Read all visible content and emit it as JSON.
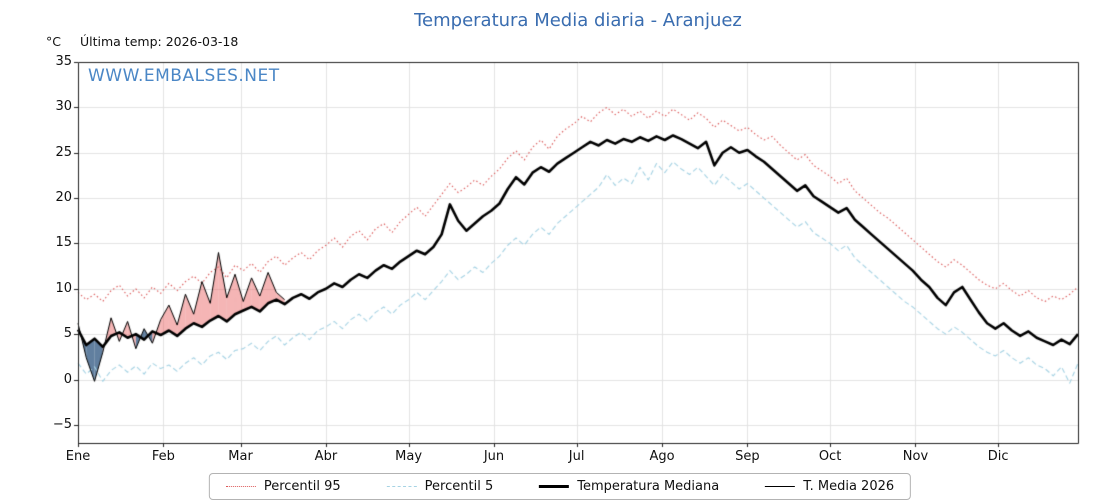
{
  "header": {
    "title": "Temperatura Media diaria - Aranjuez",
    "unit": "°C",
    "last_temp": "Última temp: 2026-03-18",
    "watermark": "WWW.EMBALSES.NET"
  },
  "colors": {
    "title_blue": "#3a6db0",
    "watermark_blue": "#4b87c6",
    "percentil95_red": "#dc5a5a",
    "percentil5_blue": "#a6d3e4",
    "median_black": "#000000",
    "grid_gray": "#e3e3e3",
    "fill_above": "rgba(232,90,90,0.45)",
    "fill_below": "rgba(58,95,135,0.8)"
  },
  "chart_data": {
    "type": "line",
    "title": "Temperatura Media diaria - Aranjuez",
    "ylabel": "°C",
    "ylim": [
      -7,
      35
    ],
    "yticks": [
      35,
      30,
      25,
      20,
      15,
      10,
      5,
      0,
      -5
    ],
    "x_months": [
      "Ene",
      "Feb",
      "Mar",
      "Abr",
      "May",
      "Jun",
      "Jul",
      "Ago",
      "Sep",
      "Oct",
      "Nov",
      "Dic"
    ],
    "month_starts": [
      0,
      31,
      59,
      90,
      120,
      151,
      181,
      212,
      243,
      273,
      304,
      334
    ],
    "x_step_days": 3,
    "grid": true,
    "legend_position": "bottom",
    "fill_above_color": "rgba(232,90,90,0.45)",
    "fill_below_color": "rgba(58,95,135,0.8)",
    "series": [
      {
        "name": "Percentil 95",
        "color": "#dc5a5a",
        "dash": "dotted",
        "line_width": 1.1,
        "values": [
          9.6,
          8.8,
          9.4,
          8.6,
          9.8,
          10.4,
          9.2,
          10.0,
          9.0,
          10.2,
          9.5,
          10.6,
          9.8,
          10.8,
          11.4,
          10.6,
          11.8,
          12.4,
          11.2,
          12.6,
          12.0,
          12.8,
          11.8,
          13.0,
          13.6,
          12.6,
          13.4,
          14.0,
          13.2,
          14.2,
          14.8,
          15.6,
          14.6,
          15.8,
          16.4,
          15.4,
          16.6,
          17.2,
          16.2,
          17.4,
          18.2,
          19.0,
          18.0,
          19.2,
          20.4,
          21.6,
          20.6,
          21.2,
          22.0,
          21.4,
          22.4,
          23.2,
          24.4,
          25.2,
          24.2,
          25.6,
          26.4,
          25.4,
          26.8,
          27.6,
          28.2,
          29.0,
          28.4,
          29.4,
          30.0,
          29.2,
          29.8,
          29.0,
          29.6,
          28.8,
          29.6,
          29.0,
          29.8,
          29.2,
          28.6,
          29.4,
          28.8,
          27.8,
          28.6,
          28.0,
          27.4,
          27.8,
          27.0,
          26.4,
          26.8,
          25.8,
          25.0,
          24.2,
          24.8,
          23.6,
          23.0,
          22.4,
          21.6,
          22.2,
          20.8,
          20.0,
          19.2,
          18.4,
          17.8,
          17.0,
          16.2,
          15.4,
          14.6,
          13.8,
          13.0,
          12.4,
          13.2,
          12.6,
          11.8,
          11.0,
          10.4,
          10.0,
          10.6,
          9.8,
          9.2,
          9.8,
          9.0,
          8.6,
          9.2,
          8.8,
          9.4,
          10.2
        ]
      },
      {
        "name": "Percentil 5",
        "color": "#a6d3e4",
        "dash": "dashed",
        "line_width": 1.1,
        "values": [
          1.8,
          0.6,
          1.4,
          -0.2,
          1.0,
          1.6,
          0.8,
          1.5,
          0.6,
          1.8,
          1.2,
          1.6,
          0.9,
          1.8,
          2.4,
          1.6,
          2.6,
          3.0,
          2.2,
          3.2,
          3.4,
          4.0,
          3.2,
          4.2,
          4.8,
          3.8,
          4.6,
          5.2,
          4.4,
          5.4,
          5.8,
          6.4,
          5.6,
          6.6,
          7.2,
          6.4,
          7.4,
          8.0,
          7.2,
          8.2,
          8.8,
          9.6,
          8.8,
          9.8,
          10.8,
          12.0,
          11.0,
          11.6,
          12.4,
          11.8,
          12.8,
          13.6,
          14.8,
          15.6,
          14.8,
          16.0,
          16.8,
          16.0,
          17.2,
          18.0,
          18.8,
          19.6,
          20.4,
          21.2,
          22.6,
          21.4,
          22.2,
          21.6,
          23.4,
          22.0,
          23.8,
          22.8,
          24.0,
          23.2,
          22.6,
          23.4,
          22.4,
          21.4,
          22.6,
          21.8,
          21.0,
          21.6,
          20.8,
          20.0,
          19.2,
          18.4,
          17.6,
          16.8,
          17.4,
          16.2,
          15.6,
          15.0,
          14.2,
          14.8,
          13.4,
          12.6,
          11.8,
          11.0,
          10.2,
          9.4,
          8.6,
          8.0,
          7.2,
          6.4,
          5.6,
          5.0,
          5.8,
          5.2,
          4.4,
          3.6,
          3.0,
          2.6,
          3.2,
          2.4,
          1.8,
          2.4,
          1.6,
          1.2,
          0.4,
          1.4,
          -0.4,
          1.8
        ]
      },
      {
        "name": "Temperatura Mediana",
        "color": "#000000",
        "dash": "solid",
        "line_width": 2.6,
        "values": [
          5.5,
          3.8,
          4.5,
          3.6,
          4.8,
          5.2,
          4.6,
          5.0,
          4.4,
          5.3,
          4.9,
          5.4,
          4.8,
          5.6,
          6.2,
          5.8,
          6.5,
          7.0,
          6.4,
          7.2,
          7.6,
          8.0,
          7.5,
          8.4,
          8.8,
          8.3,
          9.0,
          9.4,
          8.9,
          9.6,
          10.0,
          10.6,
          10.2,
          11.0,
          11.6,
          11.2,
          12.0,
          12.6,
          12.2,
          13.0,
          13.6,
          14.2,
          13.8,
          14.6,
          16.0,
          19.3,
          17.5,
          16.4,
          17.2,
          18.0,
          18.6,
          19.4,
          21.0,
          22.3,
          21.5,
          22.8,
          23.4,
          22.9,
          23.8,
          24.4,
          25.0,
          25.6,
          26.2,
          25.8,
          26.4,
          26.0,
          26.5,
          26.2,
          26.7,
          26.3,
          26.8,
          26.4,
          26.9,
          26.5,
          26.0,
          25.5,
          26.2,
          23.6,
          25.0,
          25.6,
          25.0,
          25.3,
          24.6,
          24.0,
          23.2,
          22.4,
          21.6,
          20.8,
          21.4,
          20.2,
          19.6,
          19.0,
          18.4,
          18.9,
          17.6,
          16.8,
          16.0,
          15.2,
          14.4,
          13.6,
          12.8,
          12.0,
          11.0,
          10.2,
          9.0,
          8.2,
          9.6,
          10.2,
          8.8,
          7.4,
          6.2,
          5.6,
          6.2,
          5.4,
          4.8,
          5.3,
          4.6,
          4.2,
          3.8,
          4.4,
          3.9,
          5.0
        ]
      },
      {
        "name": "T. Media 2026",
        "color": "#000000",
        "dash": "solid",
        "line_width": 1.0,
        "values": [
          6.2,
          2.4,
          -0.2,
          3.0,
          6.8,
          4.2,
          6.4,
          3.4,
          5.6,
          4.0,
          6.6,
          8.2,
          6.0,
          9.4,
          7.2,
          10.8,
          8.4,
          14.0,
          9.0,
          11.6,
          8.6,
          11.2,
          9.2,
          11.8,
          9.6,
          8.8
        ]
      }
    ]
  }
}
